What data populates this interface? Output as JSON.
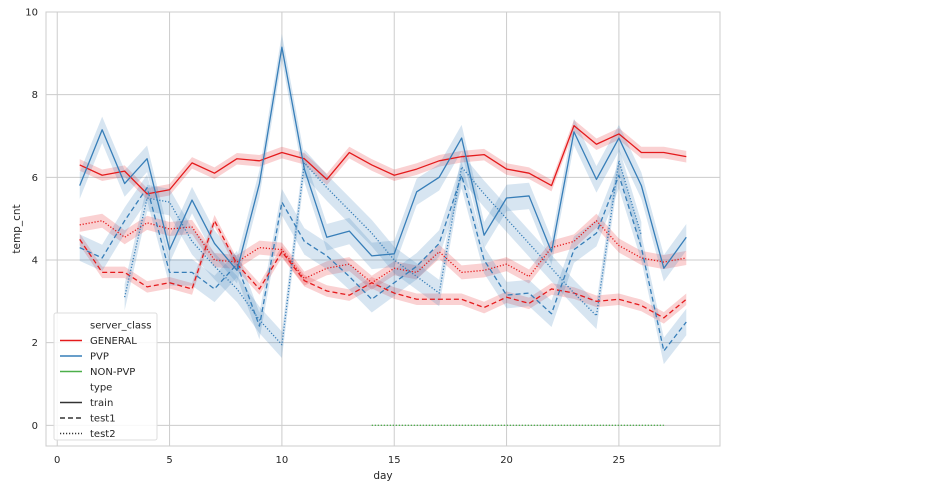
{
  "chart_data": {
    "type": "line",
    "title": "",
    "xlabel": "day",
    "ylabel": "temp_cnt",
    "xlim": [
      -0.5,
      29.5
    ],
    "ylim": [
      -0.5,
      10
    ],
    "x_ticks": [
      0,
      5,
      10,
      15,
      20,
      25
    ],
    "y_ticks": [
      0,
      2,
      4,
      6,
      8,
      10
    ],
    "grid": true,
    "legend_position": "lower-left",
    "legend": {
      "hue_title": "server_class",
      "hue_entries": [
        {
          "label": "GENERAL",
          "color": "#e41a1c"
        },
        {
          "label": "PVP",
          "color": "#377eb8"
        },
        {
          "label": "NON-PVP",
          "color": "#4daf4a"
        }
      ],
      "style_title": "type",
      "style_entries": [
        {
          "label": "train",
          "dash": "solid"
        },
        {
          "label": "test1",
          "dash": "dashed"
        },
        {
          "label": "test2",
          "dash": "dotted"
        }
      ]
    },
    "series": [
      {
        "name": "GENERAL train",
        "class": "GENERAL",
        "type": "train",
        "color": "#e41a1c",
        "dash": "solid",
        "x": [
          1,
          2,
          3,
          4,
          5,
          6,
          7,
          8,
          9,
          10,
          11,
          12,
          13,
          14,
          15,
          16,
          17,
          18,
          19,
          20,
          21,
          22,
          23,
          24,
          25,
          26,
          27,
          28
        ],
        "y": [
          6.3,
          6.05,
          6.15,
          5.6,
          5.7,
          6.35,
          6.1,
          6.45,
          6.4,
          6.6,
          6.45,
          5.95,
          6.6,
          6.3,
          6.05,
          6.2,
          6.4,
          6.5,
          6.55,
          6.2,
          6.1,
          5.8,
          7.25,
          6.8,
          7.05,
          6.6,
          6.6,
          6.5
        ],
        "band": 0.14
      },
      {
        "name": "GENERAL test1",
        "class": "GENERAL",
        "type": "test1",
        "color": "#e41a1c",
        "dash": "dashed",
        "x": [
          1,
          2,
          3,
          4,
          5,
          6,
          7,
          8,
          9,
          10,
          11,
          12,
          13,
          14,
          15,
          16,
          17,
          18,
          19,
          20,
          21,
          22,
          23,
          24,
          25,
          26,
          27,
          28
        ],
        "y": [
          4.5,
          3.7,
          3.7,
          3.35,
          3.45,
          3.3,
          4.95,
          3.9,
          3.3,
          4.2,
          3.5,
          3.25,
          3.15,
          3.45,
          3.2,
          3.05,
          3.05,
          3.05,
          2.85,
          3.1,
          2.95,
          3.3,
          3.2,
          3.0,
          3.05,
          2.9,
          2.6,
          3.05
        ],
        "band": 0.14
      },
      {
        "name": "GENERAL test2",
        "class": "GENERAL",
        "type": "test2",
        "color": "#e41a1c",
        "dash": "dotted",
        "x": [
          1,
          2,
          3,
          4,
          5,
          6,
          7,
          8,
          9,
          10,
          11,
          12,
          13,
          14,
          15,
          16,
          17,
          18,
          19,
          20,
          21,
          22,
          23,
          24,
          25,
          26,
          27,
          28
        ],
        "y": [
          4.85,
          4.95,
          4.55,
          4.9,
          4.75,
          4.8,
          4.0,
          3.95,
          4.3,
          4.25,
          3.55,
          3.8,
          3.9,
          3.45,
          3.8,
          3.7,
          4.2,
          3.7,
          3.75,
          3.9,
          3.6,
          4.3,
          4.45,
          4.95,
          4.35,
          4.05,
          3.95,
          4.05
        ],
        "band": 0.17
      },
      {
        "name": "PVP train",
        "class": "PVP",
        "type": "train",
        "color": "#377eb8",
        "dash": "solid",
        "x": [
          1,
          2,
          3,
          4,
          5,
          6,
          7,
          8,
          9,
          10,
          11,
          12,
          13,
          14,
          15,
          16,
          17,
          18,
          19,
          20,
          21,
          22,
          23,
          24,
          25,
          26,
          27,
          28
        ],
        "y": [
          5.8,
          7.15,
          5.85,
          6.45,
          4.25,
          5.45,
          4.4,
          3.75,
          5.85,
          9.15,
          6.2,
          4.55,
          4.7,
          4.1,
          4.15,
          5.65,
          6.0,
          6.95,
          4.6,
          5.5,
          5.55,
          4.2,
          7.1,
          5.95,
          6.95,
          5.8,
          3.8,
          4.55
        ],
        "band": 0.32
      },
      {
        "name": "PVP test1",
        "class": "PVP",
        "type": "test1",
        "color": "#377eb8",
        "dash": "dashed",
        "x": [
          1,
          2,
          3,
          4,
          5,
          6,
          7,
          8,
          9,
          10,
          11,
          12,
          13,
          14,
          15,
          16,
          17,
          18,
          19,
          20,
          21,
          22,
          23,
          24,
          25,
          26,
          27,
          28
        ],
        "y": [
          4.3,
          4.05,
          4.95,
          5.75,
          3.7,
          3.7,
          3.3,
          3.9,
          2.4,
          5.4,
          4.45,
          4.1,
          3.6,
          3.05,
          3.45,
          3.85,
          4.4,
          6.05,
          4.0,
          3.15,
          3.2,
          2.7,
          4.25,
          4.65,
          6.05,
          4.3,
          1.8,
          2.5
        ],
        "band": 0.32
      },
      {
        "name": "PVP test2",
        "class": "PVP",
        "type": "test2",
        "color": "#377eb8",
        "dash": "dotted",
        "x": [
          3,
          4,
          5,
          6,
          7,
          8,
          9,
          10,
          11,
          12,
          13,
          14,
          15,
          16,
          17,
          18,
          19,
          20,
          21,
          22,
          23,
          24,
          25,
          26
        ],
        "y": [
          3.1,
          5.5,
          5.4,
          4.45,
          3.85,
          3.3,
          2.55,
          1.95,
          6.35,
          5.75,
          5.2,
          4.65,
          4.0,
          3.6,
          3.2,
          6.25,
          5.6,
          5.0,
          4.4,
          3.8,
          3.2,
          2.65,
          6.4,
          4.6
        ],
        "band": 0.32
      },
      {
        "name": "NON-PVP test2",
        "class": "NON-PVP",
        "type": "test2",
        "color": "#4daf4a",
        "dash": "dotted",
        "x": [
          14,
          15,
          16,
          17,
          18,
          19,
          20,
          21,
          22,
          23,
          24,
          25,
          26,
          27
        ],
        "y": [
          0,
          0,
          0,
          0,
          0,
          0,
          0,
          0,
          0,
          0,
          0,
          0,
          0,
          0
        ],
        "band": 0
      }
    ]
  }
}
